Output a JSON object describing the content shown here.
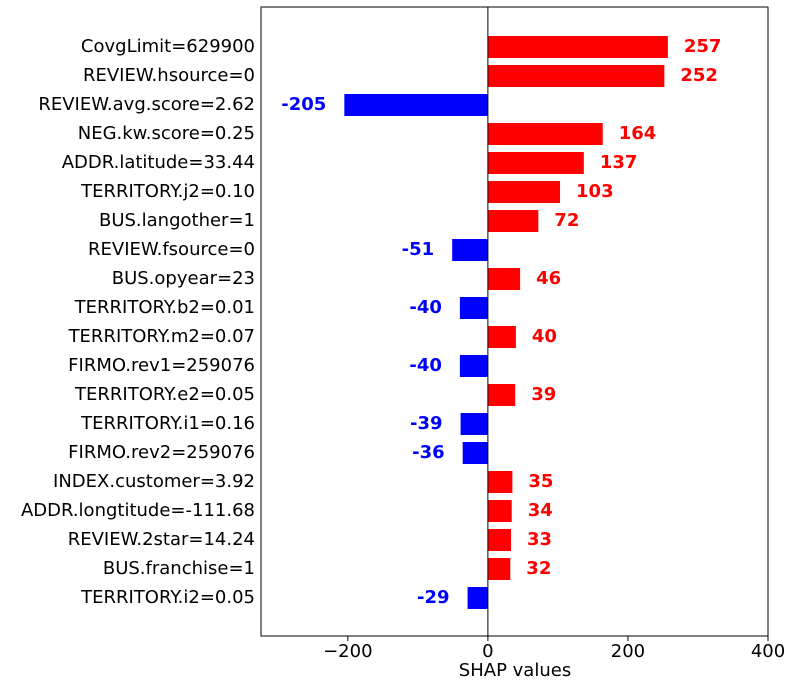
{
  "chart_data": {
    "type": "barh",
    "xlabel": "SHAP values",
    "categories": [
      "CovgLimit=629900",
      "REVIEW.hsource=0",
      "REVIEW.avg.score=2.62",
      "NEG.kw.score=0.25",
      "ADDR.latitude=33.44",
      "TERRITORY.j2=0.10",
      "BUS.langother=1",
      "REVIEW.fsource=0",
      "BUS.opyear=23",
      "TERRITORY.b2=0.01",
      "TERRITORY.m2=0.07",
      "FIRMO.rev1=259076",
      "TERRITORY.e2=0.05",
      "TERRITORY.i1=0.16",
      "FIRMO.rev2=259076",
      "INDEX.customer=3.92",
      "ADDR.longtitude=-111.68",
      "REVIEW.2star=14.24",
      "BUS.franchise=1",
      "TERRITORY.i2=0.05"
    ],
    "values": [
      257,
      252,
      -205,
      164,
      137,
      103,
      72,
      -51,
      46,
      -40,
      40,
      -40,
      39,
      -39,
      -36,
      35,
      34,
      33,
      32,
      -29
    ],
    "positive_color": "#ff0000",
    "negative_color": "#0000ff",
    "xlim": [
      -324,
      400
    ],
    "xticks": [
      {
        "value": -200,
        "label": "−200"
      },
      0,
      200,
      400
    ]
  }
}
